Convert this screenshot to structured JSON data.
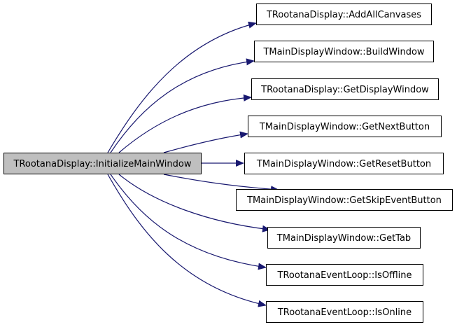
{
  "graph": {
    "source": {
      "label": "TRootanaDisplay::InitializeMainWindow",
      "fill": "#bfbfbf"
    },
    "targets": [
      {
        "label": "TRootanaDisplay::AddAllCanvases"
      },
      {
        "label": "TMainDisplayWindow::BuildWindow"
      },
      {
        "label": "TRootanaDisplay::GetDisplayWindow"
      },
      {
        "label": "TMainDisplayWindow::GetNextButton"
      },
      {
        "label": "TMainDisplayWindow::GetResetButton"
      },
      {
        "label": "TMainDisplayWindow::GetSkipEventButton"
      },
      {
        "label": "TMainDisplayWindow::GetTab"
      },
      {
        "label": "TRootanaEventLoop::IsOffline"
      },
      {
        "label": "TRootanaEventLoop::IsOnline"
      }
    ],
    "edge_color": "#191970",
    "node_border": "#000000"
  }
}
